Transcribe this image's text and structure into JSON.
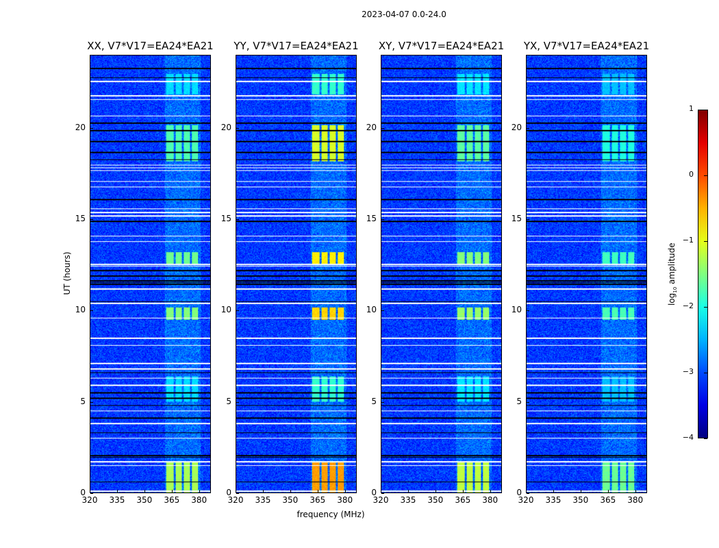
{
  "chart_data": {
    "type": "heatmap",
    "title": "2023-04-07 0.0-24.0",
    "xlabel": "frequency (MHz)",
    "ylabel": "UT (hours)",
    "xlim": [
      320,
      386.5
    ],
    "ylim": [
      0,
      24
    ],
    "xticks": [
      "320",
      "335",
      "350",
      "365",
      "380"
    ],
    "xtick_values": [
      320,
      335,
      350,
      365,
      380
    ],
    "yticks": [
      "0",
      "5",
      "10",
      "15",
      "20"
    ],
    "ytick_values": [
      0,
      5,
      10,
      15,
      20
    ],
    "colorbar": {
      "label_prefix": "log",
      "label_sub": "10",
      "label_suffix": " amplitude",
      "range": [
        -4,
        1
      ],
      "ticks": [
        "1",
        "0",
        "−1",
        "−2",
        "−3",
        "−4"
      ],
      "tick_values": [
        1,
        0,
        -1,
        -2,
        -3,
        -4
      ],
      "colormap": "jet"
    },
    "background_level": -3.1,
    "rfi_channels_mhz": [
      [
        362,
        366
      ],
      [
        367,
        370.5
      ],
      [
        371.5,
        375
      ],
      [
        376,
        379.5
      ]
    ],
    "rfi_time_ranges_hr": [
      {
        "range": [
          0,
          1.7
        ],
        "level": 1.0
      },
      {
        "range": [
          5.0,
          6.4
        ],
        "level": 0.45
      },
      {
        "range": [
          9.5,
          10.2
        ],
        "level": 0.9
      },
      {
        "range": [
          12.6,
          13.2
        ],
        "level": 0.85
      },
      {
        "range": [
          18.2,
          20.2
        ],
        "level": 0.75
      },
      {
        "range": [
          21.9,
          23.0
        ],
        "level": 0.45
      }
    ],
    "flagged_white_hr": [
      0.1,
      1.5,
      1.7,
      3.0,
      3.8,
      4.5,
      5.9,
      6.3,
      6.8,
      7.1,
      8.1,
      8.5,
      9.6,
      10.4,
      11.2,
      12.45,
      12.55,
      13.8,
      14.1,
      15.2,
      15.4,
      15.6,
      16.8,
      17.1,
      17.7,
      17.85,
      18.0,
      20.7,
      21.6,
      21.8,
      22.6
    ],
    "flagged_black_hr": [
      0.6,
      1.95,
      2.05,
      3.3,
      4.1,
      4.8,
      5.2,
      5.5,
      6.6,
      10.5,
      11.45,
      11.55,
      11.65,
      11.9,
      12.2,
      14.9,
      16.1,
      18.3,
      18.7,
      19.3,
      19.9,
      20.3,
      22.8,
      23.3
    ],
    "panels": [
      {
        "title": "XX, V7*V17=EA24*EA21",
        "rfi_peak": -1.3
      },
      {
        "title": "YY, V7*V17=EA24*EA21",
        "rfi_peak": -0.4
      },
      {
        "title": "XY, V7*V17=EA24*EA21",
        "rfi_peak": -1.2
      },
      {
        "title": "YX, V7*V17=EA24*EA21",
        "rfi_peak": -1.6
      }
    ]
  }
}
